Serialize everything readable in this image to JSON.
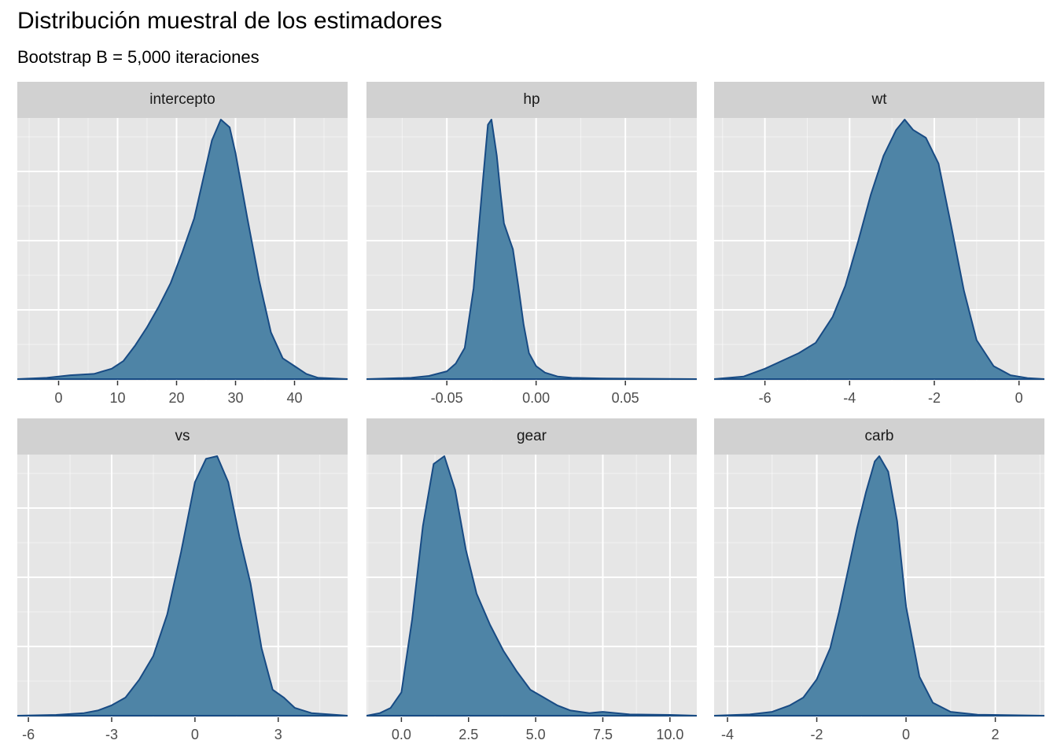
{
  "title": "Distribución muestral de los estimadores",
  "subtitle": "Bootstrap B = 5,000 iteraciones",
  "colors": {
    "fill": "#4e84a6",
    "line": "#184b84",
    "panel_bg": "#e6e6e6",
    "strip_bg": "#d1d1d1",
    "grid": "#ffffff"
  },
  "chart_data": [
    {
      "type": "area",
      "title": "intercepto",
      "xlim": [
        -7,
        49
      ],
      "ylim": [
        0,
        1
      ],
      "xticks": [
        0,
        10,
        20,
        30,
        40
      ],
      "xtick_labels": [
        "0",
        "10",
        "20",
        "30",
        "40"
      ],
      "grid": true,
      "x": [
        -7,
        -2,
        2,
        6,
        9,
        11,
        13,
        15,
        17,
        19,
        21,
        23,
        24,
        26,
        27.5,
        29,
        30,
        32,
        34,
        36,
        38,
        40,
        42,
        44,
        49
      ],
      "y": [
        0,
        0.005,
        0.015,
        0.02,
        0.04,
        0.07,
        0.13,
        0.2,
        0.28,
        0.37,
        0.49,
        0.62,
        0.72,
        0.92,
        1.0,
        0.97,
        0.87,
        0.62,
        0.38,
        0.18,
        0.08,
        0.05,
        0.02,
        0.005,
        0
      ]
    },
    {
      "type": "area",
      "title": "hp",
      "xlim": [
        -0.095,
        0.09
      ],
      "ylim": [
        0,
        1
      ],
      "xticks": [
        -0.05,
        0.0,
        0.05
      ],
      "xtick_labels": [
        "-0.05",
        "0.00",
        "0.05"
      ],
      "grid": true,
      "x": [
        -0.095,
        -0.07,
        -0.06,
        -0.05,
        -0.045,
        -0.04,
        -0.035,
        -0.03,
        -0.027,
        -0.025,
        -0.022,
        -0.02,
        -0.018,
        -0.015,
        -0.013,
        -0.01,
        -0.007,
        -0.004,
        0,
        0.005,
        0.012,
        0.02,
        0.04,
        0.09
      ],
      "y": [
        0,
        0.005,
        0.012,
        0.03,
        0.06,
        0.12,
        0.35,
        0.75,
        0.98,
        1.0,
        0.86,
        0.72,
        0.6,
        0.54,
        0.5,
        0.36,
        0.21,
        0.1,
        0.05,
        0.025,
        0.01,
        0.005,
        0.002,
        0
      ]
    },
    {
      "type": "area",
      "title": "wt",
      "xlim": [
        -7.2,
        0.6
      ],
      "ylim": [
        0,
        1
      ],
      "xticks": [
        -6,
        -4,
        -2,
        0
      ],
      "xtick_labels": [
        "-6",
        "-4",
        "-2",
        "0"
      ],
      "grid": true,
      "x": [
        -7.2,
        -6.5,
        -6.0,
        -5.6,
        -5.2,
        -4.8,
        -4.4,
        -4.1,
        -3.8,
        -3.5,
        -3.2,
        -2.9,
        -2.7,
        -2.5,
        -2.2,
        -1.9,
        -1.6,
        -1.3,
        -1.0,
        -0.6,
        -0.2,
        0.2,
        0.6
      ],
      "y": [
        0,
        0.01,
        0.04,
        0.07,
        0.1,
        0.14,
        0.24,
        0.36,
        0.53,
        0.71,
        0.86,
        0.96,
        1.0,
        0.96,
        0.93,
        0.83,
        0.59,
        0.34,
        0.15,
        0.05,
        0.015,
        0.004,
        0
      ]
    },
    {
      "type": "area",
      "title": "vs",
      "xlim": [
        -6.4,
        5.5
      ],
      "ylim": [
        0,
        1
      ],
      "xticks": [
        -6,
        -3,
        0,
        3
      ],
      "xtick_labels": [
        "-6",
        "-3",
        "0",
        "3"
      ],
      "grid": true,
      "x": [
        -6.4,
        -5,
        -4,
        -3.5,
        -3,
        -2.5,
        -2,
        -1.5,
        -1,
        -0.5,
        0,
        0.4,
        0.8,
        1.2,
        1.6,
        2.0,
        2.4,
        2.8,
        3.2,
        3.6,
        4.2,
        5.5
      ],
      "y": [
        0,
        0.003,
        0.01,
        0.02,
        0.04,
        0.07,
        0.14,
        0.23,
        0.39,
        0.63,
        0.9,
        0.99,
        1.0,
        0.9,
        0.69,
        0.51,
        0.26,
        0.1,
        0.07,
        0.03,
        0.01,
        0
      ]
    },
    {
      "type": "area",
      "title": "gear",
      "xlim": [
        -1.3,
        11
      ],
      "ylim": [
        0,
        1
      ],
      "xticks": [
        0.0,
        2.5,
        5.0,
        7.5,
        10.0
      ],
      "xtick_labels": [
        "0.0",
        "2.5",
        "5.0",
        "7.5",
        "10.0"
      ],
      "grid": true,
      "x": [
        -1.3,
        -0.8,
        -0.4,
        0,
        0.4,
        0.8,
        1.2,
        1.6,
        2.0,
        2.4,
        2.8,
        3.3,
        3.8,
        4.3,
        4.8,
        5.3,
        5.8,
        6.3,
        7,
        7.5,
        8.5,
        10,
        11
      ],
      "y": [
        0,
        0.01,
        0.03,
        0.09,
        0.37,
        0.73,
        0.97,
        1.0,
        0.87,
        0.64,
        0.47,
        0.35,
        0.25,
        0.17,
        0.1,
        0.07,
        0.04,
        0.02,
        0.01,
        0.015,
        0.005,
        0.003,
        0
      ]
    },
    {
      "type": "area",
      "title": "carb",
      "xlim": [
        -4.3,
        3.1
      ],
      "ylim": [
        0,
        1
      ],
      "xticks": [
        -4,
        -2,
        0,
        2
      ],
      "xtick_labels": [
        "-4",
        "-2",
        "0",
        "2"
      ],
      "grid": true,
      "x": [
        -4.3,
        -3.5,
        -3.0,
        -2.6,
        -2.3,
        -2.0,
        -1.7,
        -1.5,
        -1.3,
        -1.1,
        -0.9,
        -0.7,
        -0.6,
        -0.4,
        -0.2,
        0,
        0.3,
        0.6,
        1.0,
        1.6,
        3.1
      ],
      "y": [
        0,
        0.005,
        0.015,
        0.04,
        0.07,
        0.14,
        0.26,
        0.4,
        0.56,
        0.72,
        0.86,
        0.98,
        1.0,
        0.94,
        0.75,
        0.42,
        0.15,
        0.05,
        0.015,
        0.004,
        0
      ]
    }
  ]
}
